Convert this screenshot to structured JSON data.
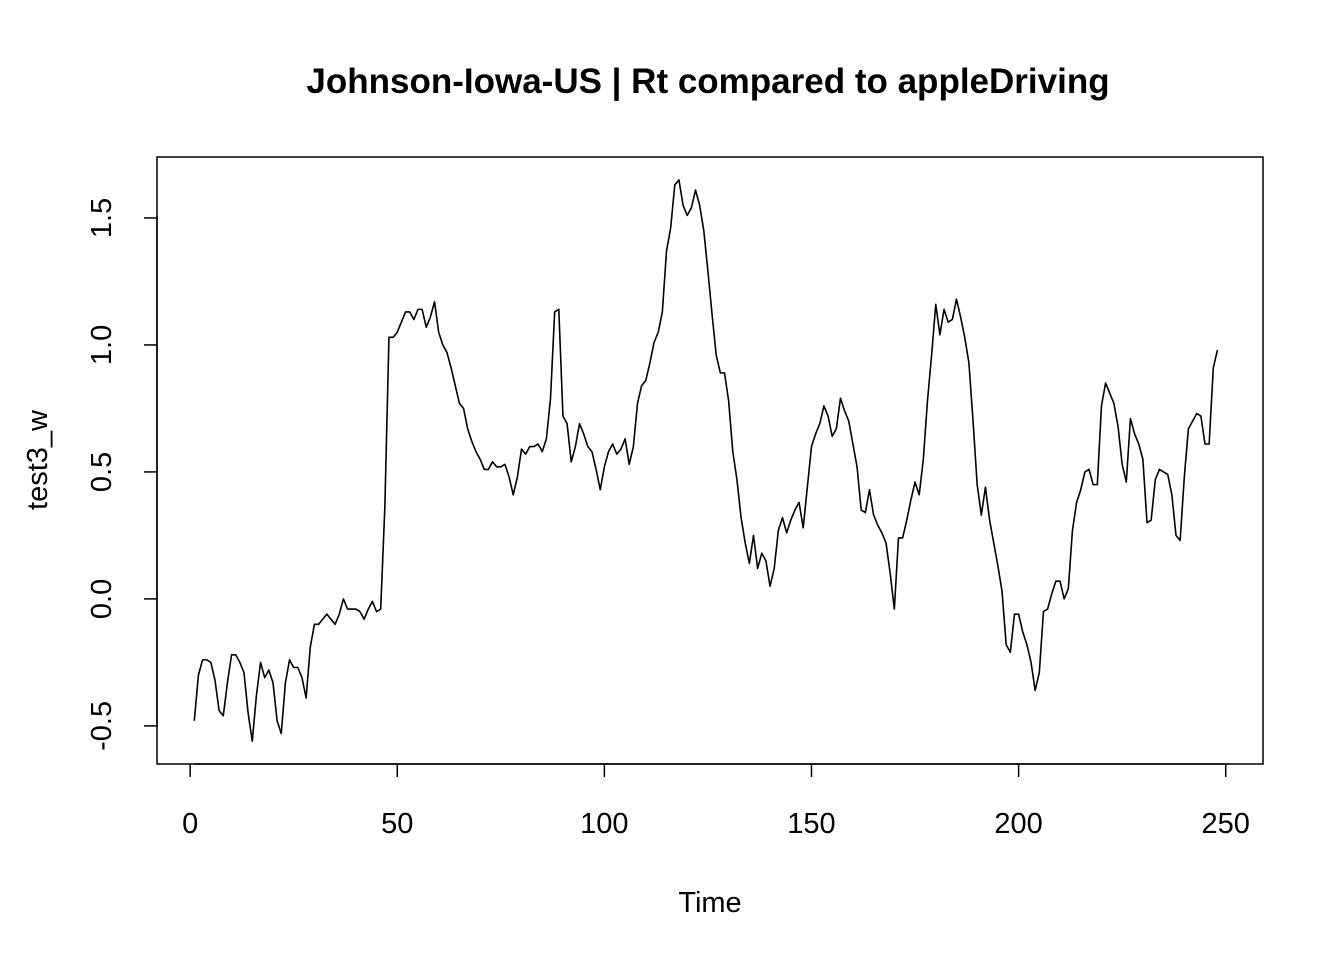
{
  "chart_data": {
    "type": "line",
    "title": "Johnson-Iowa-US | Rt compared to appleDriving",
    "xlabel": "Time",
    "ylabel": "test3_w",
    "xlim": [
      -8,
      259
    ],
    "ylim": [
      -0.65,
      1.74
    ],
    "x_ticks": [
      0,
      50,
      100,
      150,
      200,
      250
    ],
    "x_tick_labels": [
      "0",
      "50",
      "100",
      "150",
      "200",
      "250"
    ],
    "y_ticks": [
      -0.5,
      0.0,
      0.5,
      1.0,
      1.5
    ],
    "y_tick_labels": [
      "-0.5",
      "0.0",
      "0.5",
      "1.0",
      "1.5"
    ],
    "grid": false,
    "series": [
      {
        "line_color": "#000000",
        "x": [
          1,
          2,
          3,
          4,
          5,
          6,
          7,
          8,
          9,
          10,
          11,
          12,
          13,
          14,
          15,
          16,
          17,
          18,
          19,
          20,
          21,
          22,
          23,
          24,
          25,
          26,
          27,
          28,
          29,
          30,
          31,
          32,
          33,
          34,
          35,
          36,
          37,
          38,
          39,
          40,
          41,
          42,
          43,
          44,
          45,
          46,
          47,
          48,
          49,
          50,
          51,
          52,
          53,
          54,
          55,
          56,
          57,
          58,
          59,
          60,
          61,
          62,
          63,
          64,
          65,
          66,
          67,
          68,
          69,
          70,
          71,
          72,
          73,
          74,
          75,
          76,
          77,
          78,
          79,
          80,
          81,
          82,
          83,
          84,
          85,
          86,
          87,
          88,
          89,
          90,
          91,
          92,
          93,
          94,
          95,
          96,
          97,
          98,
          99,
          100,
          101,
          102,
          103,
          104,
          105,
          106,
          107,
          108,
          109,
          110,
          111,
          112,
          113,
          114,
          115,
          116,
          117,
          118,
          119,
          120,
          121,
          122,
          123,
          124,
          125,
          126,
          127,
          128,
          129,
          130,
          131,
          132,
          133,
          134,
          135,
          136,
          137,
          138,
          139,
          140,
          141,
          142,
          143,
          144,
          145,
          146,
          147,
          148,
          149,
          150,
          151,
          152,
          153,
          154,
          155,
          156,
          157,
          158,
          159,
          160,
          161,
          162,
          163,
          164,
          165,
          166,
          167,
          168,
          169,
          170,
          171,
          172,
          173,
          174,
          175,
          176,
          177,
          178,
          179,
          180,
          181,
          182,
          183,
          184,
          185,
          186,
          187,
          188,
          189,
          190,
          191,
          192,
          193,
          194,
          195,
          196,
          197,
          198,
          199,
          200,
          201,
          202,
          203,
          204,
          205,
          206,
          207,
          208,
          209,
          210,
          211,
          212,
          213,
          214,
          215,
          216,
          217,
          218,
          219,
          220,
          221,
          222,
          223,
          224,
          225,
          226,
          227,
          228,
          229,
          230,
          231,
          232,
          233,
          234,
          235,
          236,
          237,
          238,
          239,
          240,
          241,
          242,
          243,
          244,
          245,
          246,
          247,
          248
        ],
        "values": [
          -0.48,
          -0.3,
          -0.24,
          -0.24,
          -0.25,
          -0.32,
          -0.44,
          -0.46,
          -0.33,
          -0.22,
          -0.22,
          -0.25,
          -0.29,
          -0.45,
          -0.56,
          -0.38,
          -0.25,
          -0.31,
          -0.28,
          -0.33,
          -0.48,
          -0.53,
          -0.33,
          -0.24,
          -0.27,
          -0.27,
          -0.31,
          -0.39,
          -0.19,
          -0.1,
          -0.1,
          -0.08,
          -0.06,
          -0.08,
          -0.1,
          -0.06,
          0.0,
          -0.04,
          -0.04,
          -0.04,
          -0.05,
          -0.08,
          -0.04,
          -0.01,
          -0.05,
          -0.04,
          0.36,
          1.03,
          1.03,
          1.05,
          1.09,
          1.13,
          1.13,
          1.1,
          1.14,
          1.14,
          1.07,
          1.11,
          1.17,
          1.05,
          1.0,
          0.97,
          0.91,
          0.84,
          0.77,
          0.75,
          0.67,
          0.62,
          0.58,
          0.55,
          0.51,
          0.51,
          0.54,
          0.52,
          0.52,
          0.53,
          0.48,
          0.41,
          0.48,
          0.59,
          0.57,
          0.6,
          0.6,
          0.61,
          0.58,
          0.63,
          0.79,
          1.13,
          1.14,
          0.72,
          0.69,
          0.54,
          0.6,
          0.69,
          0.65,
          0.6,
          0.58,
          0.51,
          0.43,
          0.52,
          0.58,
          0.61,
          0.57,
          0.59,
          0.63,
          0.53,
          0.6,
          0.77,
          0.84,
          0.86,
          0.93,
          1.01,
          1.05,
          1.13,
          1.37,
          1.46,
          1.63,
          1.65,
          1.55,
          1.51,
          1.54,
          1.61,
          1.55,
          1.45,
          1.29,
          1.12,
          0.96,
          0.89,
          0.89,
          0.78,
          0.58,
          0.47,
          0.32,
          0.22,
          0.14,
          0.25,
          0.12,
          0.18,
          0.15,
          0.05,
          0.12,
          0.27,
          0.32,
          0.26,
          0.31,
          0.35,
          0.38,
          0.28,
          0.44,
          0.6,
          0.65,
          0.69,
          0.76,
          0.72,
          0.64,
          0.67,
          0.79,
          0.74,
          0.7,
          0.61,
          0.52,
          0.35,
          0.34,
          0.43,
          0.33,
          0.29,
          0.26,
          0.22,
          0.1,
          -0.04,
          0.24,
          0.24,
          0.31,
          0.39,
          0.46,
          0.41,
          0.55,
          0.78,
          0.96,
          1.16,
          1.04,
          1.14,
          1.09,
          1.1,
          1.18,
          1.11,
          1.03,
          0.93,
          0.7,
          0.45,
          0.33,
          0.44,
          0.31,
          0.22,
          0.13,
          0.03,
          -0.18,
          -0.21,
          -0.06,
          -0.06,
          -0.13,
          -0.18,
          -0.25,
          -0.36,
          -0.29,
          -0.05,
          -0.04,
          0.02,
          0.07,
          0.07,
          0.0,
          0.04,
          0.27,
          0.38,
          0.43,
          0.5,
          0.51,
          0.45,
          0.45,
          0.76,
          0.85,
          0.81,
          0.77,
          0.68,
          0.53,
          0.46,
          0.71,
          0.65,
          0.61,
          0.55,
          0.3,
          0.31,
          0.47,
          0.51,
          0.5,
          0.49,
          0.41,
          0.25,
          0.23,
          0.48,
          0.67,
          0.7,
          0.73,
          0.72,
          0.61,
          0.61,
          0.91,
          0.98
        ]
      }
    ]
  }
}
